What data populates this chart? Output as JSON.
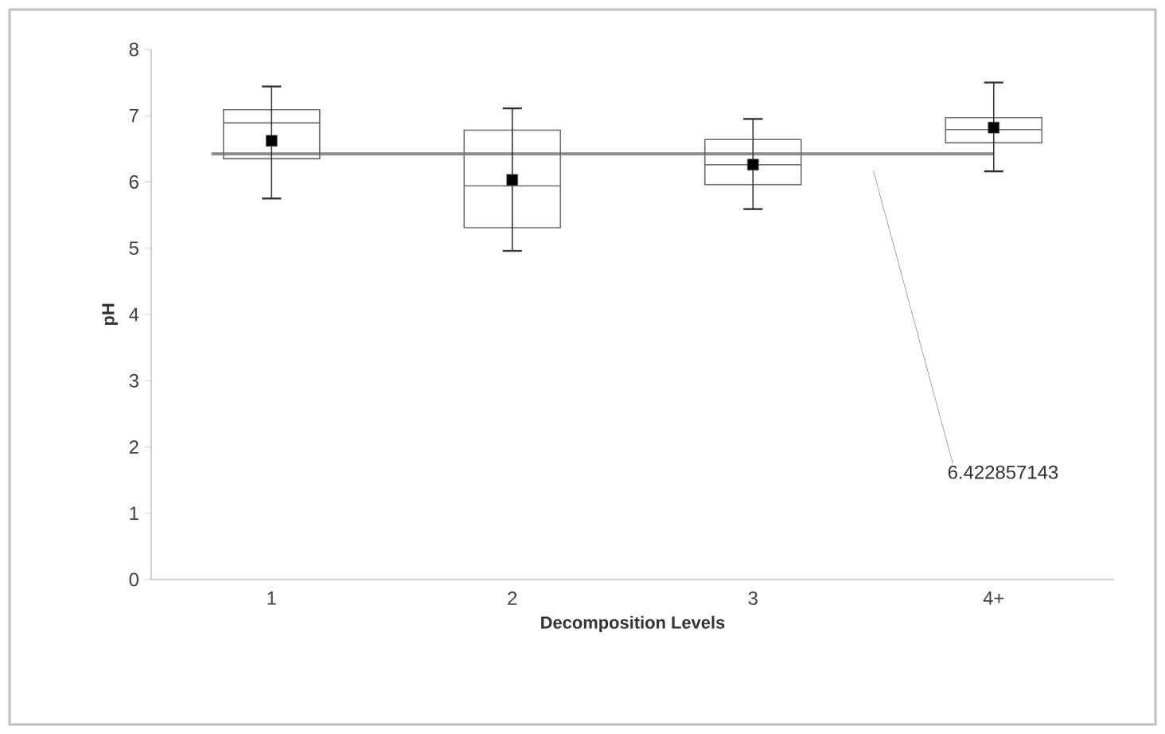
{
  "chart_data": {
    "type": "box",
    "xlabel": "Decomposition Levels",
    "ylabel": "pH",
    "categories": [
      "1",
      "2",
      "3",
      "4+"
    ],
    "boxes": [
      {
        "low": 5.75,
        "q1": 6.35,
        "median": 6.89,
        "q3": 7.09,
        "high": 7.44,
        "mean": 6.62
      },
      {
        "low": 4.96,
        "q1": 5.31,
        "median": 5.94,
        "q3": 6.78,
        "high": 7.11,
        "mean": 6.03
      },
      {
        "low": 5.59,
        "q1": 5.96,
        "median": 6.26,
        "q3": 6.64,
        "high": 6.95,
        "mean": 6.26
      },
      {
        "low": 6.16,
        "q1": 6.59,
        "median": 6.79,
        "q3": 6.97,
        "high": 7.5,
        "mean": 6.82
      }
    ],
    "color": "#6e6e6e",
    "ylim": [
      0,
      8
    ],
    "yticks": [
      0,
      1,
      2,
      3,
      4,
      5,
      6,
      7,
      8
    ],
    "ref_lines": [
      {
        "axis": "y",
        "value": 6.422857143,
        "color": "#8c8c8c"
      }
    ],
    "annotations": [
      "6.422857143"
    ]
  }
}
